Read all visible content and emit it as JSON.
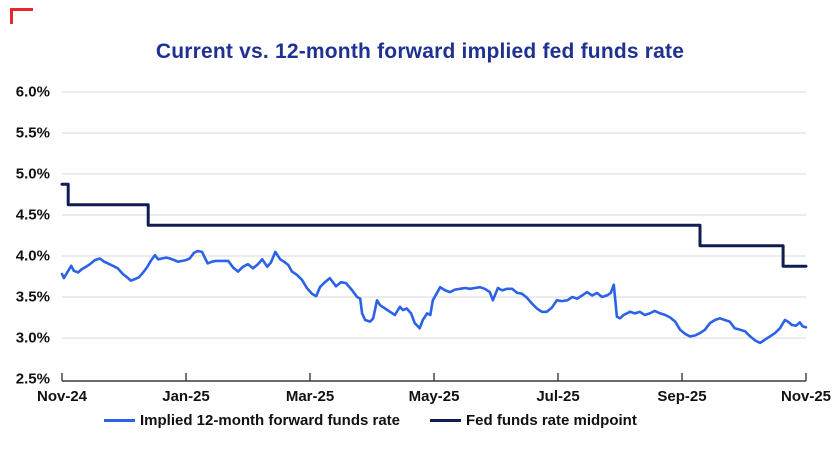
{
  "decorations": {
    "corner_mark_color": "#e8262d"
  },
  "title": {
    "text": "Current vs. 12-month forward implied fed funds rate",
    "color": "#1f3191"
  },
  "legend": {
    "items": [
      {
        "label": "Implied 12-month forward funds rate",
        "color": "#2c62e8"
      },
      {
        "label": "Fed funds rate midpoint",
        "color": "#101d52"
      }
    ]
  },
  "chart_data": {
    "type": "line",
    "title": "Current vs. 12-month forward implied fed funds rate",
    "xlabel": "",
    "ylabel": "",
    "x_unit": "months since Nov-2024",
    "x_range": [
      0,
      12
    ],
    "ylim": [
      2.5,
      6.0
    ],
    "grid": "horizontal",
    "legend_position": "bottom",
    "x_tick_labels": [
      "Nov-24",
      "Jan-25",
      "Mar-25",
      "May-25",
      "Jul-25",
      "Sep-25",
      "Nov-25"
    ],
    "x_tick_positions": [
      0,
      2,
      4,
      6,
      8,
      10,
      12
    ],
    "y_tick_labels": [
      "6.0%",
      "5.5%",
      "5.0%",
      "4.5%",
      "4.0%",
      "3.5%",
      "3.0%",
      "2.5%"
    ],
    "y_tick_values": [
      6.0,
      5.5,
      5.0,
      4.5,
      4.0,
      3.5,
      3.0,
      2.5
    ],
    "series": [
      {
        "name": "Implied 12-month forward funds rate",
        "color": "#2c62e8",
        "stroke_width": 2.6,
        "points": [
          [
            0.0,
            3.78
          ],
          [
            0.03,
            3.73
          ],
          [
            0.1,
            3.82
          ],
          [
            0.15,
            3.88
          ],
          [
            0.19,
            3.82
          ],
          [
            0.26,
            3.8
          ],
          [
            0.32,
            3.84
          ],
          [
            0.39,
            3.87
          ],
          [
            0.45,
            3.9
          ],
          [
            0.53,
            3.95
          ],
          [
            0.61,
            3.97
          ],
          [
            0.68,
            3.93
          ],
          [
            0.74,
            3.91
          ],
          [
            0.82,
            3.88
          ],
          [
            0.9,
            3.85
          ],
          [
            0.98,
            3.78
          ],
          [
            1.05,
            3.74
          ],
          [
            1.11,
            3.7
          ],
          [
            1.18,
            3.72
          ],
          [
            1.24,
            3.74
          ],
          [
            1.31,
            3.8
          ],
          [
            1.37,
            3.86
          ],
          [
            1.44,
            3.95
          ],
          [
            1.5,
            4.01
          ],
          [
            1.55,
            3.96
          ],
          [
            1.61,
            3.97
          ],
          [
            1.68,
            3.98
          ],
          [
            1.74,
            3.97
          ],
          [
            1.81,
            3.95
          ],
          [
            1.87,
            3.93
          ],
          [
            1.94,
            3.94
          ],
          [
            2.0,
            3.95
          ],
          [
            2.06,
            3.97
          ],
          [
            2.13,
            4.04
          ],
          [
            2.19,
            4.06
          ],
          [
            2.26,
            4.05
          ],
          [
            2.31,
            3.97
          ],
          [
            2.35,
            3.91
          ],
          [
            2.42,
            3.93
          ],
          [
            2.48,
            3.94
          ],
          [
            2.55,
            3.94
          ],
          [
            2.61,
            3.94
          ],
          [
            2.68,
            3.94
          ],
          [
            2.76,
            3.86
          ],
          [
            2.84,
            3.81
          ],
          [
            2.92,
            3.87
          ],
          [
            3.0,
            3.9
          ],
          [
            3.08,
            3.85
          ],
          [
            3.16,
            3.9
          ],
          [
            3.23,
            3.96
          ],
          [
            3.31,
            3.87
          ],
          [
            3.37,
            3.92
          ],
          [
            3.44,
            4.05
          ],
          [
            3.52,
            3.96
          ],
          [
            3.58,
            3.93
          ],
          [
            3.65,
            3.89
          ],
          [
            3.71,
            3.81
          ],
          [
            3.79,
            3.77
          ],
          [
            3.87,
            3.71
          ],
          [
            3.95,
            3.61
          ],
          [
            4.03,
            3.54
          ],
          [
            4.1,
            3.51
          ],
          [
            4.16,
            3.62
          ],
          [
            4.24,
            3.68
          ],
          [
            4.32,
            3.73
          ],
          [
            4.42,
            3.63
          ],
          [
            4.5,
            3.68
          ],
          [
            4.58,
            3.67
          ],
          [
            4.68,
            3.58
          ],
          [
            4.76,
            3.5
          ],
          [
            4.81,
            3.48
          ],
          [
            4.84,
            3.3
          ],
          [
            4.89,
            3.22
          ],
          [
            4.97,
            3.2
          ],
          [
            5.02,
            3.24
          ],
          [
            5.08,
            3.46
          ],
          [
            5.13,
            3.4
          ],
          [
            5.21,
            3.36
          ],
          [
            5.29,
            3.32
          ],
          [
            5.37,
            3.28
          ],
          [
            5.45,
            3.38
          ],
          [
            5.5,
            3.34
          ],
          [
            5.56,
            3.36
          ],
          [
            5.63,
            3.3
          ],
          [
            5.69,
            3.18
          ],
          [
            5.77,
            3.12
          ],
          [
            5.82,
            3.22
          ],
          [
            5.89,
            3.3
          ],
          [
            5.94,
            3.28
          ],
          [
            5.98,
            3.46
          ],
          [
            6.1,
            3.62
          ],
          [
            6.18,
            3.58
          ],
          [
            6.26,
            3.56
          ],
          [
            6.34,
            3.59
          ],
          [
            6.42,
            3.6
          ],
          [
            6.5,
            3.61
          ],
          [
            6.58,
            3.6
          ],
          [
            6.66,
            3.61
          ],
          [
            6.74,
            3.62
          ],
          [
            6.82,
            3.6
          ],
          [
            6.9,
            3.56
          ],
          [
            6.95,
            3.46
          ],
          [
            7.03,
            3.61
          ],
          [
            7.1,
            3.58
          ],
          [
            7.18,
            3.6
          ],
          [
            7.26,
            3.6
          ],
          [
            7.34,
            3.55
          ],
          [
            7.42,
            3.54
          ],
          [
            7.5,
            3.49
          ],
          [
            7.58,
            3.42
          ],
          [
            7.66,
            3.36
          ],
          [
            7.74,
            3.32
          ],
          [
            7.82,
            3.32
          ],
          [
            7.9,
            3.37
          ],
          [
            7.98,
            3.46
          ],
          [
            8.06,
            3.45
          ],
          [
            8.15,
            3.46
          ],
          [
            8.23,
            3.5
          ],
          [
            8.31,
            3.48
          ],
          [
            8.39,
            3.52
          ],
          [
            8.47,
            3.56
          ],
          [
            8.55,
            3.52
          ],
          [
            8.63,
            3.55
          ],
          [
            8.71,
            3.5
          ],
          [
            8.79,
            3.52
          ],
          [
            8.85,
            3.55
          ],
          [
            8.9,
            3.65
          ],
          [
            8.95,
            3.26
          ],
          [
            9.0,
            3.24
          ],
          [
            9.06,
            3.28
          ],
          [
            9.16,
            3.32
          ],
          [
            9.24,
            3.3
          ],
          [
            9.32,
            3.32
          ],
          [
            9.4,
            3.28
          ],
          [
            9.48,
            3.3
          ],
          [
            9.56,
            3.33
          ],
          [
            9.65,
            3.3
          ],
          [
            9.73,
            3.28
          ],
          [
            9.81,
            3.25
          ],
          [
            9.89,
            3.2
          ],
          [
            9.97,
            3.1
          ],
          [
            10.05,
            3.05
          ],
          [
            10.13,
            3.02
          ],
          [
            10.21,
            3.03
          ],
          [
            10.29,
            3.06
          ],
          [
            10.37,
            3.1
          ],
          [
            10.45,
            3.18
          ],
          [
            10.53,
            3.22
          ],
          [
            10.61,
            3.24
          ],
          [
            10.69,
            3.22
          ],
          [
            10.77,
            3.2
          ],
          [
            10.85,
            3.12
          ],
          [
            10.94,
            3.1
          ],
          [
            11.02,
            3.08
          ],
          [
            11.1,
            3.02
          ],
          [
            11.18,
            2.97
          ],
          [
            11.26,
            2.94
          ],
          [
            11.34,
            2.98
          ],
          [
            11.42,
            3.02
          ],
          [
            11.5,
            3.06
          ],
          [
            11.58,
            3.12
          ],
          [
            11.66,
            3.22
          ],
          [
            11.71,
            3.2
          ],
          [
            11.77,
            3.16
          ],
          [
            11.84,
            3.15
          ],
          [
            11.9,
            3.19
          ],
          [
            11.95,
            3.14
          ],
          [
            12.0,
            3.13
          ]
        ]
      },
      {
        "name": "Fed funds rate midpoint",
        "color": "#101d52",
        "stroke_width": 3,
        "points": [
          [
            0.0,
            4.875
          ],
          [
            0.1,
            4.875
          ],
          [
            0.1,
            4.625
          ],
          [
            1.39,
            4.625
          ],
          [
            1.39,
            4.375
          ],
          [
            10.29,
            4.375
          ],
          [
            10.29,
            4.125
          ],
          [
            11.63,
            4.125
          ],
          [
            11.63,
            3.875
          ],
          [
            12.0,
            3.875
          ]
        ]
      }
    ]
  }
}
